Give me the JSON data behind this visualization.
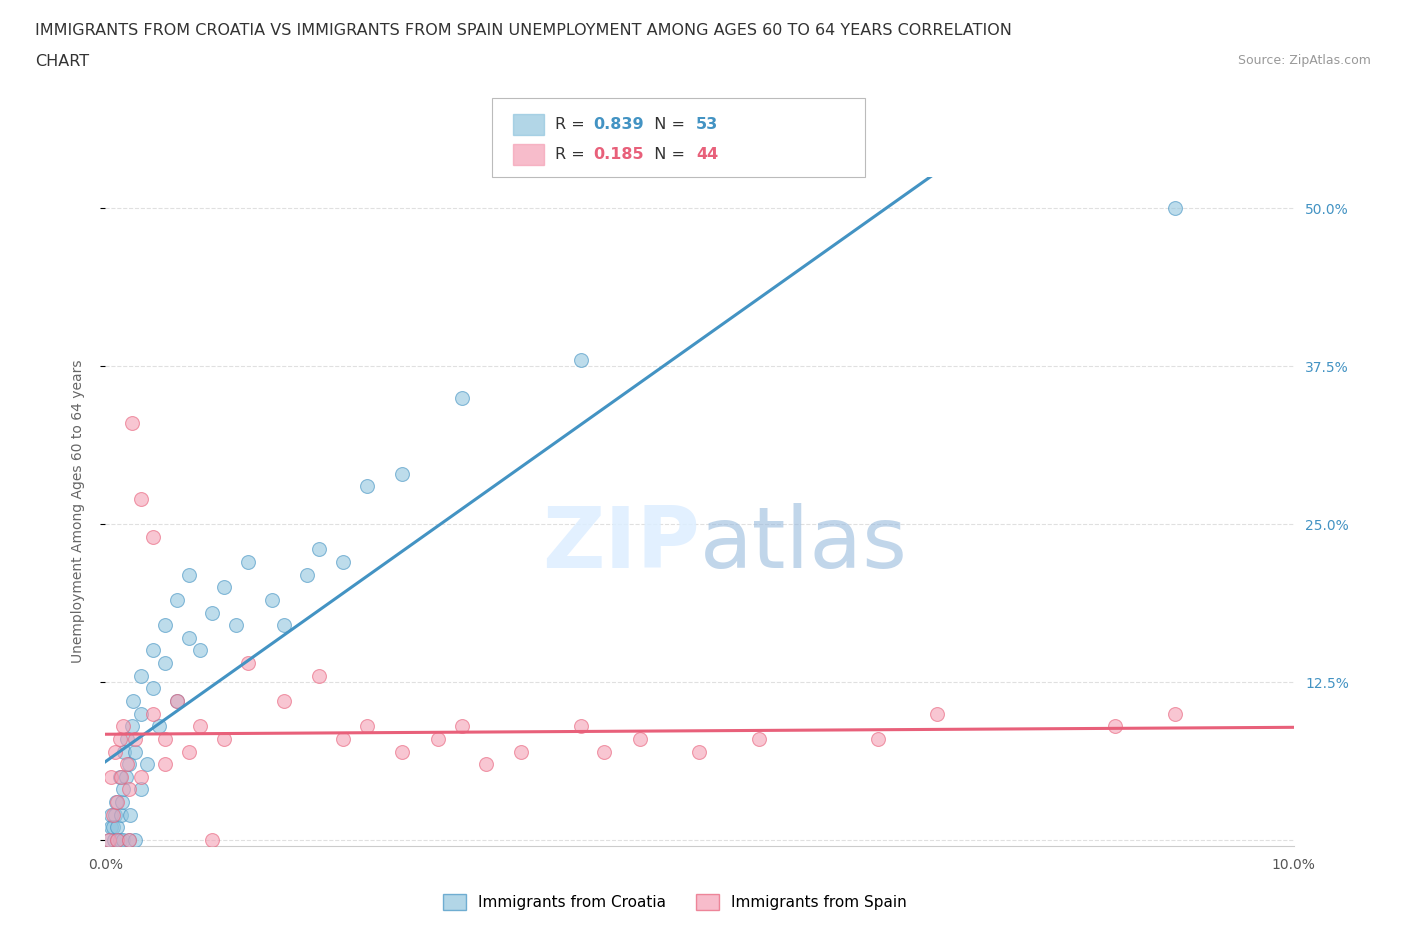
{
  "title_line1": "IMMIGRANTS FROM CROATIA VS IMMIGRANTS FROM SPAIN UNEMPLOYMENT AMONG AGES 60 TO 64 YEARS CORRELATION",
  "title_line2": "CHART",
  "source_text": "Source: ZipAtlas.com",
  "ylabel": "Unemployment Among Ages 60 to 64 years",
  "watermark": "ZIPatlas",
  "xlim": [
    0.0,
    0.1
  ],
  "ylim": [
    -0.005,
    0.525
  ],
  "xticks": [
    0.0,
    0.02,
    0.04,
    0.06,
    0.08,
    0.1
  ],
  "xtick_labels": [
    "0.0%",
    "",
    "",
    "",
    "",
    "10.0%"
  ],
  "yticks_right": [
    0.0,
    0.125,
    0.25,
    0.375,
    0.5
  ],
  "ytick_right_labels": [
    "",
    "12.5%",
    "25.0%",
    "37.5%",
    "50.0%"
  ],
  "croatia_color": "#92c5de",
  "spain_color": "#f4a0b5",
  "croatia_line_color": "#4393c3",
  "spain_line_color": "#e8607a",
  "R_croatia": 0.839,
  "N_croatia": 53,
  "R_spain": 0.185,
  "N_spain": 44,
  "legend_label_croatia": "Immigrants from Croatia",
  "legend_label_spain": "Immigrants from Spain",
  "croatia_x": [
    0.0003,
    0.0005,
    0.0005,
    0.0006,
    0.0007,
    0.0008,
    0.0009,
    0.001,
    0.001,
    0.0012,
    0.0012,
    0.0013,
    0.0014,
    0.0015,
    0.0015,
    0.0016,
    0.0017,
    0.0018,
    0.002,
    0.002,
    0.0021,
    0.0022,
    0.0023,
    0.0025,
    0.0025,
    0.003,
    0.003,
    0.003,
    0.0035,
    0.004,
    0.004,
    0.0045,
    0.005,
    0.005,
    0.006,
    0.006,
    0.007,
    0.007,
    0.008,
    0.009,
    0.01,
    0.011,
    0.012,
    0.014,
    0.015,
    0.017,
    0.018,
    0.02,
    0.022,
    0.025,
    0.03,
    0.04,
    0.09
  ],
  "croatia_y": [
    0.0,
    0.01,
    0.02,
    0.01,
    0.0,
    0.02,
    0.03,
    0.0,
    0.01,
    0.0,
    0.05,
    0.02,
    0.03,
    0.0,
    0.04,
    0.07,
    0.05,
    0.08,
    0.0,
    0.06,
    0.02,
    0.09,
    0.11,
    0.0,
    0.07,
    0.1,
    0.04,
    0.13,
    0.06,
    0.12,
    0.15,
    0.09,
    0.14,
    0.17,
    0.11,
    0.19,
    0.16,
    0.21,
    0.15,
    0.18,
    0.2,
    0.17,
    0.22,
    0.19,
    0.17,
    0.21,
    0.23,
    0.22,
    0.28,
    0.29,
    0.35,
    0.38,
    0.5
  ],
  "spain_x": [
    0.0003,
    0.0005,
    0.0006,
    0.0008,
    0.001,
    0.001,
    0.0012,
    0.0013,
    0.0015,
    0.0018,
    0.002,
    0.002,
    0.0022,
    0.0025,
    0.003,
    0.003,
    0.004,
    0.004,
    0.005,
    0.005,
    0.006,
    0.007,
    0.008,
    0.009,
    0.01,
    0.012,
    0.015,
    0.018,
    0.02,
    0.022,
    0.025,
    0.028,
    0.03,
    0.032,
    0.035,
    0.04,
    0.042,
    0.045,
    0.05,
    0.055,
    0.065,
    0.07,
    0.085,
    0.09
  ],
  "spain_y": [
    0.0,
    0.05,
    0.02,
    0.07,
    0.0,
    0.03,
    0.08,
    0.05,
    0.09,
    0.06,
    0.0,
    0.04,
    0.33,
    0.08,
    0.27,
    0.05,
    0.1,
    0.24,
    0.08,
    0.06,
    0.11,
    0.07,
    0.09,
    0.0,
    0.08,
    0.14,
    0.11,
    0.13,
    0.08,
    0.09,
    0.07,
    0.08,
    0.09,
    0.06,
    0.07,
    0.09,
    0.07,
    0.08,
    0.07,
    0.08,
    0.08,
    0.1,
    0.09,
    0.1
  ],
  "background_color": "#ffffff",
  "grid_color": "#e0e0e0",
  "title_fontsize": 11.5,
  "axis_label_fontsize": 10,
  "tick_fontsize": 10
}
